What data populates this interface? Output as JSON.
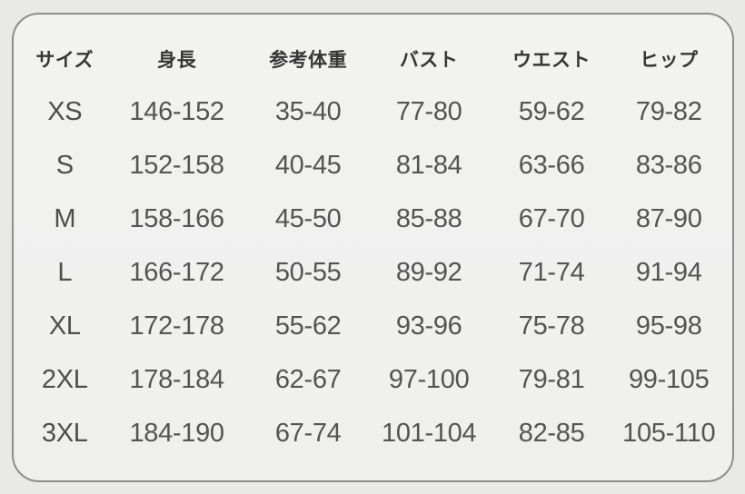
{
  "chart_data": {
    "type": "table",
    "title": "",
    "columns": [
      "サイズ",
      "身長",
      "参考体重",
      "バスト",
      "ウエスト",
      "ヒップ"
    ],
    "rows": [
      [
        "XS",
        "146-152",
        "35-40",
        "77-80",
        "59-62",
        "79-82"
      ],
      [
        "S",
        "152-158",
        "40-45",
        "81-84",
        "63-66",
        "83-86"
      ],
      [
        "M",
        "158-166",
        "45-50",
        "85-88",
        "67-70",
        "87-90"
      ],
      [
        "L",
        "166-172",
        "50-55",
        "89-92",
        "71-74",
        "91-94"
      ],
      [
        "XL",
        "172-178",
        "55-62",
        "93-96",
        "75-78",
        "95-98"
      ],
      [
        "2XL",
        "178-184",
        "62-67",
        "97-100",
        "79-81",
        "99-105"
      ],
      [
        "3XL",
        "184-190",
        "67-74",
        "101-104",
        "82-85",
        "105-110"
      ]
    ]
  },
  "colors": {
    "page_background": "#e9e9e8",
    "panel_background": "#f1f1f0",
    "panel_border": "#8d8d8d",
    "header_text": "#363636",
    "cell_text": "#545454"
  }
}
